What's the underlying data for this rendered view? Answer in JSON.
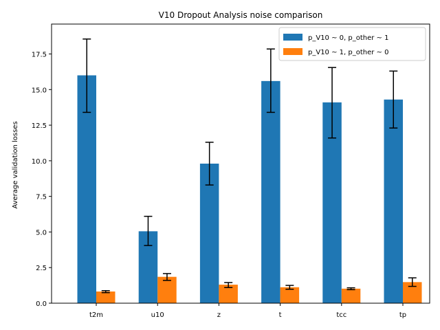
{
  "chart_data": {
    "type": "bar",
    "title": "V10 Dropout Analysis noise comparison",
    "xlabel": "",
    "ylabel": "Average validation losses",
    "categories": [
      "t2m",
      "u10",
      "z",
      "t",
      "tcc",
      "tp"
    ],
    "ylim": [
      0,
      19.6
    ],
    "yticks": [
      0.0,
      2.5,
      5.0,
      7.5,
      10.0,
      12.5,
      15.0,
      17.5
    ],
    "ytick_labels": [
      "0.0",
      "2.5",
      "5.0",
      "7.5",
      "10.0",
      "12.5",
      "15.0",
      "17.5"
    ],
    "grid": false,
    "legend_position": "top-right",
    "series": [
      {
        "name": "p_V10 ~ 0, p_other ~ 1",
        "color": "#1f77b4",
        "values": [
          16.0,
          5.05,
          9.8,
          15.6,
          14.1,
          14.3
        ],
        "err_low": [
          13.4,
          4.05,
          8.3,
          13.4,
          11.6,
          12.3
        ],
        "err_high": [
          18.55,
          6.1,
          11.3,
          17.85,
          16.55,
          16.3
        ]
      },
      {
        "name": "p_V10 ~ 1, p_other ~ 0",
        "color": "#ff7f0e",
        "values": [
          0.82,
          1.85,
          1.3,
          1.12,
          1.02,
          1.48
        ],
        "err_low": [
          0.74,
          1.6,
          1.1,
          0.98,
          0.95,
          1.18
        ],
        "err_high": [
          0.88,
          2.08,
          1.45,
          1.25,
          1.08,
          1.78
        ]
      }
    ]
  }
}
